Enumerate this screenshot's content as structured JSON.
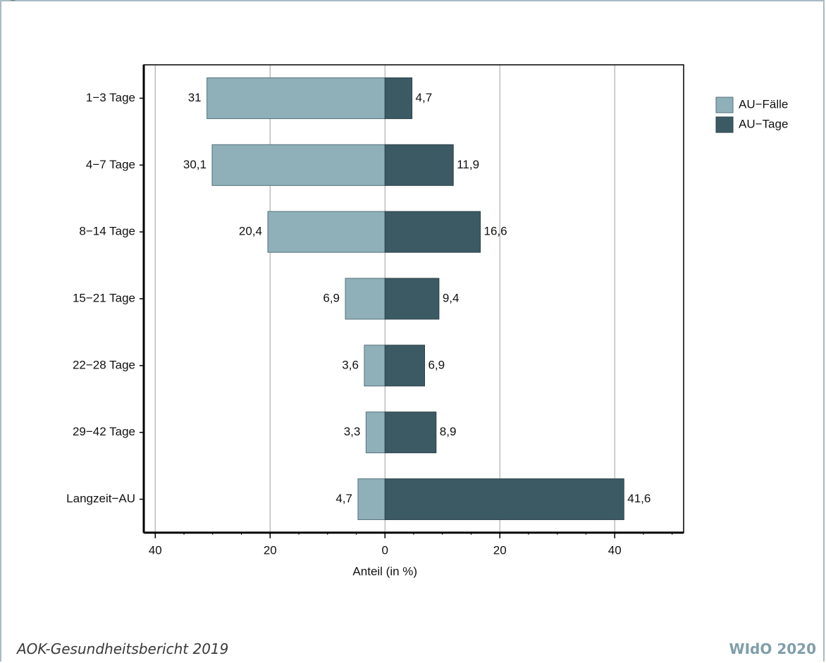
{
  "footer": {
    "source": "AOK-Gesundheitsbericht 2019",
    "brand": "WIdO 2020"
  },
  "colors": {
    "faelle": "#8fb0b9",
    "tage": "#3c5a64",
    "frame": "#a9bbc3"
  },
  "chart_data": {
    "type": "bar",
    "orientation": "horizontal",
    "layout": "back-to-back",
    "categories": [
      "1−3 Tage",
      "4−7 Tage",
      "8−14 Tage",
      "15−21 Tage",
      "22−28 Tage",
      "29−42 Tage",
      "Langzeit−AU"
    ],
    "series": [
      {
        "name": "AU−Fälle",
        "side": "left",
        "values": [
          31,
          30.1,
          20.4,
          6.9,
          3.6,
          3.3,
          4.7
        ],
        "labels": [
          "31",
          "30,1",
          "20,4",
          "6,9",
          "3,6",
          "3,3",
          "4,7"
        ]
      },
      {
        "name": "AU−Tage",
        "side": "right",
        "values": [
          4.7,
          11.9,
          16.6,
          9.4,
          6.9,
          8.9,
          41.6
        ],
        "labels": [
          "4,7",
          "11,9",
          "16,6",
          "9,4",
          "6,9",
          "8,9",
          "41,6"
        ]
      }
    ],
    "xlabel": "Anteil (in %)",
    "xlim": [
      -42,
      52
    ],
    "xticks": [
      -40,
      -20,
      0,
      20,
      40
    ],
    "xtick_labels": [
      "40",
      "20",
      "0",
      "20",
      "40"
    ],
    "grid": true,
    "legend": "right"
  }
}
